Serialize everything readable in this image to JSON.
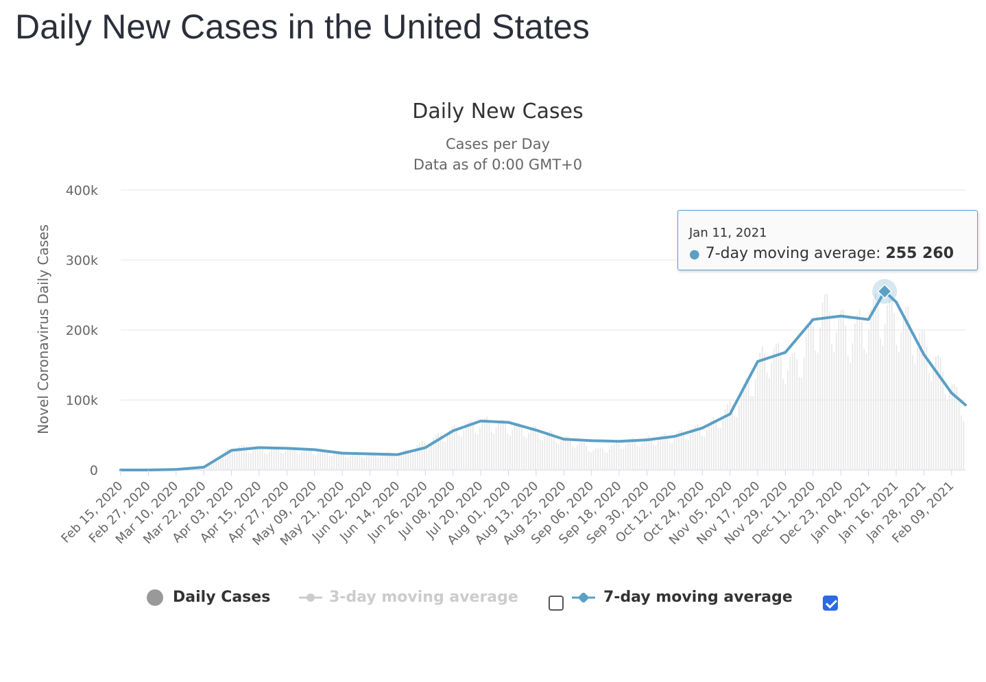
{
  "page": {
    "title": "Daily New Cases in the United States"
  },
  "chart_data": {
    "type": "bar",
    "title": "Daily New Cases",
    "subtitle_line1": "Cases per Day",
    "subtitle_line2": "Data as of 0:00 GMT+0",
    "ylabel": "Novel Coronavirus Daily Cases",
    "xlabel": "",
    "ylim": [
      0,
      400000
    ],
    "yticks": [
      0,
      100000,
      200000,
      300000,
      400000
    ],
    "ytick_labels": [
      "0",
      "100k",
      "200k",
      "300k",
      "400k"
    ],
    "xtick_labels": [
      "Feb 15, 2020",
      "Feb 27, 2020",
      "Mar 10, 2020",
      "Mar 22, 2020",
      "Apr 03, 2020",
      "Apr 15, 2020",
      "Apr 27, 2020",
      "May 09, 2020",
      "May 21, 2020",
      "Jun 02, 2020",
      "Jun 14, 2020",
      "Jun 26, 2020",
      "Jul 08, 2020",
      "Jul 20, 2020",
      "Aug 01, 2020",
      "Aug 13, 2020",
      "Aug 25, 2020",
      "Sep 06, 2020",
      "Sep 18, 2020",
      "Sep 30, 2020",
      "Oct 12, 2020",
      "Oct 24, 2020",
      "Nov 05, 2020",
      "Nov 17, 2020",
      "Nov 29, 2020",
      "Dec 11, 2020",
      "Dec 23, 2020",
      "Jan 04, 2021",
      "Jan 16, 2021",
      "Jan 28, 2021",
      "Feb 09, 2021"
    ],
    "grid": true,
    "legend_position": "bottom",
    "series": [
      {
        "name": "Daily Cases",
        "type": "bar",
        "color": "#e6e6e6",
        "x": [
          "Feb 15, 2020",
          "Feb 27, 2020",
          "Mar 10, 2020",
          "Mar 22, 2020",
          "Apr 03, 2020",
          "Apr 15, 2020",
          "Apr 27, 2020",
          "May 09, 2020",
          "May 21, 2020",
          "Jun 02, 2020",
          "Jun 14, 2020",
          "Jun 26, 2020",
          "Jul 08, 2020",
          "Jul 20, 2020",
          "Aug 01, 2020",
          "Aug 13, 2020",
          "Aug 25, 2020",
          "Sep 06, 2020",
          "Sep 18, 2020",
          "Sep 30, 2020",
          "Oct 12, 2020",
          "Oct 24, 2020",
          "Nov 05, 2020",
          "Nov 17, 2020",
          "Nov 29, 2020",
          "Dec 11, 2020",
          "Dec 23, 2020",
          "Jan 04, 2021",
          "Jan 16, 2021",
          "Jan 28, 2021",
          "Feb 09, 2021"
        ],
        "values": [
          0,
          10,
          800,
          6000,
          33000,
          29000,
          30000,
          27000,
          23000,
          22000,
          24000,
          42000,
          60000,
          68000,
          62000,
          54000,
          42000,
          28000,
          40000,
          45000,
          52000,
          64000,
          100000,
          170000,
          150000,
          230000,
          195000,
          230000,
          210000,
          155000,
          90000
        ]
      },
      {
        "name": "3-day moving average",
        "type": "line",
        "color": "#cccccc",
        "visible": false,
        "values": []
      },
      {
        "name": "7-day moving average",
        "type": "line",
        "color": "#5b9fc5",
        "visible": true,
        "x": [
          "Feb 15, 2020",
          "Feb 27, 2020",
          "Mar 10, 2020",
          "Mar 22, 2020",
          "Apr 03, 2020",
          "Apr 15, 2020",
          "Apr 27, 2020",
          "May 09, 2020",
          "May 21, 2020",
          "Jun 02, 2020",
          "Jun 14, 2020",
          "Jun 26, 2020",
          "Jul 08, 2020",
          "Jul 20, 2020",
          "Aug 01, 2020",
          "Aug 13, 2020",
          "Aug 25, 2020",
          "Sep 06, 2020",
          "Sep 18, 2020",
          "Sep 30, 2020",
          "Oct 12, 2020",
          "Oct 24, 2020",
          "Nov 05, 2020",
          "Nov 17, 2020",
          "Nov 29, 2020",
          "Dec 11, 2020",
          "Dec 23, 2020",
          "Jan 04, 2021",
          "Jan 11, 2021",
          "Jan 16, 2021",
          "Jan 28, 2021",
          "Feb 09, 2021",
          "Feb 15, 2021"
        ],
        "values": [
          0,
          0,
          800,
          4000,
          28000,
          32000,
          31000,
          29000,
          24000,
          23000,
          22000,
          32000,
          56000,
          70000,
          68000,
          57000,
          44000,
          42000,
          41000,
          43000,
          48000,
          60000,
          80000,
          155000,
          168000,
          215000,
          220000,
          215000,
          255260,
          240000,
          165000,
          110000,
          93000
        ]
      }
    ]
  },
  "tooltip": {
    "date": "Jan 11, 2021",
    "series_label": "7-day moving average: ",
    "value": "255 260"
  },
  "legend": {
    "daily": "Daily Cases",
    "ma3": "3-day moving average",
    "ma7": "7-day moving average",
    "ma3_checked": false,
    "ma7_checked": true
  }
}
